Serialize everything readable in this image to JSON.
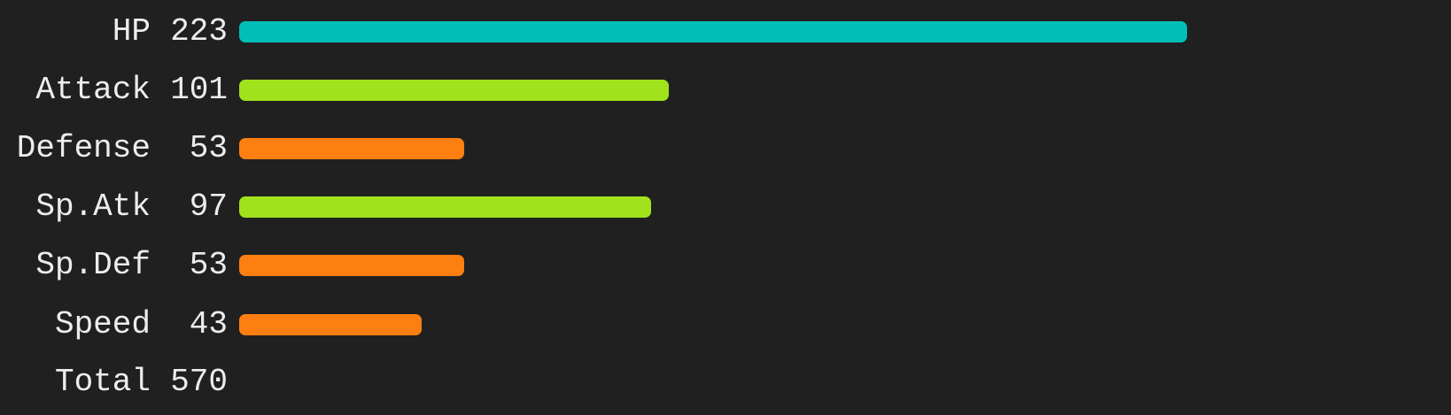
{
  "chart_data": {
    "type": "bar",
    "orientation": "horizontal",
    "categories": [
      "HP",
      "Attack",
      "Defense",
      "Sp.Atk",
      "Sp.Def",
      "Speed"
    ],
    "values": [
      223,
      101,
      53,
      97,
      53,
      43
    ],
    "colors": [
      "#03bfb8",
      "#a0e31c",
      "#fe7f11",
      "#a0e31c",
      "#fe7f11",
      "#fe7f11"
    ],
    "max_value": 223,
    "total_label": "Total",
    "total_value": 570,
    "grid": false,
    "legend": "none"
  }
}
